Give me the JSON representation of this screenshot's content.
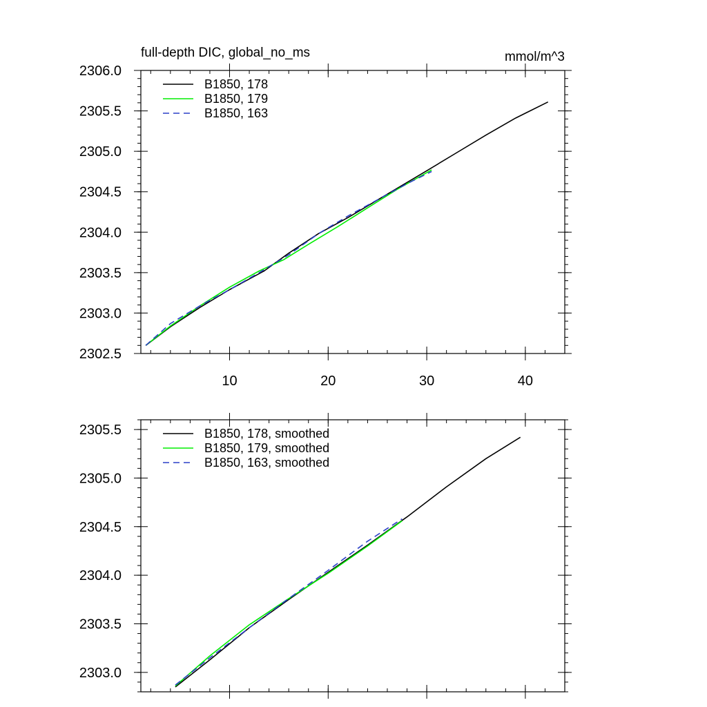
{
  "chart_data": [
    {
      "type": "line",
      "title_left": "full-depth DIC, global_no_ms",
      "title_right": "mmol/m^3",
      "xlim": [
        1,
        44
      ],
      "ylim": [
        2302.5,
        2306.0
      ],
      "x_ticks": [
        10,
        20,
        30,
        40
      ],
      "x_minor_step": 2,
      "y_ticks": [
        2302.5,
        2303.0,
        2303.5,
        2304.0,
        2304.5,
        2305.0,
        2305.5,
        2306.0
      ],
      "y_minor_step": 0.1,
      "show_x_labels": true,
      "legend_position": "top-left",
      "series": [
        {
          "name": "B1850, 178",
          "color": "#000000",
          "dash": "solid",
          "x": [
            1.5,
            4,
            7,
            10,
            13.5,
            16,
            19,
            22,
            26,
            30,
            33,
            36,
            39,
            42.3
          ],
          "y": [
            2302.6,
            2302.83,
            2303.07,
            2303.29,
            2303.52,
            2303.74,
            2303.98,
            2304.18,
            2304.47,
            2304.76,
            2304.98,
            2305.2,
            2305.41,
            2305.61
          ]
        },
        {
          "name": "B1850, 179",
          "color": "#00ee00",
          "dash": "solid",
          "x": [
            1.5,
            4,
            7,
            10,
            13,
            15.5,
            18,
            21,
            24,
            27,
            30.5
          ],
          "y": [
            2302.6,
            2302.84,
            2303.09,
            2303.32,
            2303.52,
            2303.66,
            2303.85,
            2304.07,
            2304.3,
            2304.53,
            2304.77
          ]
        },
        {
          "name": "B1850, 163",
          "color": "#2a3fc7",
          "dash": "dashed",
          "x": [
            1.5,
            4,
            7,
            10,
            13,
            16,
            19,
            22,
            25,
            28,
            30.5
          ],
          "y": [
            2302.6,
            2302.87,
            2303.09,
            2303.29,
            2303.5,
            2303.72,
            2303.98,
            2304.2,
            2304.4,
            2304.6,
            2304.75
          ]
        }
      ]
    },
    {
      "type": "line",
      "title_left": "",
      "title_right": "",
      "xlim": [
        1,
        44
      ],
      "ylim": [
        2302.8,
        2305.6
      ],
      "x_ticks": [
        10,
        20,
        30,
        40
      ],
      "x_minor_step": 2,
      "y_ticks": [
        2303.0,
        2303.5,
        2304.0,
        2304.5,
        2305.0,
        2305.5
      ],
      "y_minor_step": 0.1,
      "show_x_labels": false,
      "legend_position": "top-left",
      "series": [
        {
          "name": "B1850, 178, smoothed",
          "color": "#000000",
          "dash": "solid",
          "x": [
            4.5,
            8,
            12,
            16,
            20,
            24,
            28,
            32,
            36,
            39.5
          ],
          "y": [
            2302.85,
            2303.13,
            2303.46,
            2303.75,
            2304.03,
            2304.31,
            2304.6,
            2304.91,
            2305.2,
            2305.42
          ]
        },
        {
          "name": "B1850, 179, smoothed",
          "color": "#00ee00",
          "dash": "solid",
          "x": [
            4.5,
            8,
            12,
            16,
            20,
            24,
            27.5
          ],
          "y": [
            2302.86,
            2303.17,
            2303.49,
            2303.76,
            2304.02,
            2304.3,
            2304.56
          ]
        },
        {
          "name": "B1850, 163, smoothed",
          "color": "#2a3fc7",
          "dash": "dashed",
          "x": [
            4.5,
            8,
            12,
            16,
            20,
            24,
            27.5
          ],
          "y": [
            2302.87,
            2303.15,
            2303.46,
            2303.76,
            2304.05,
            2304.35,
            2304.58
          ]
        }
      ]
    }
  ]
}
